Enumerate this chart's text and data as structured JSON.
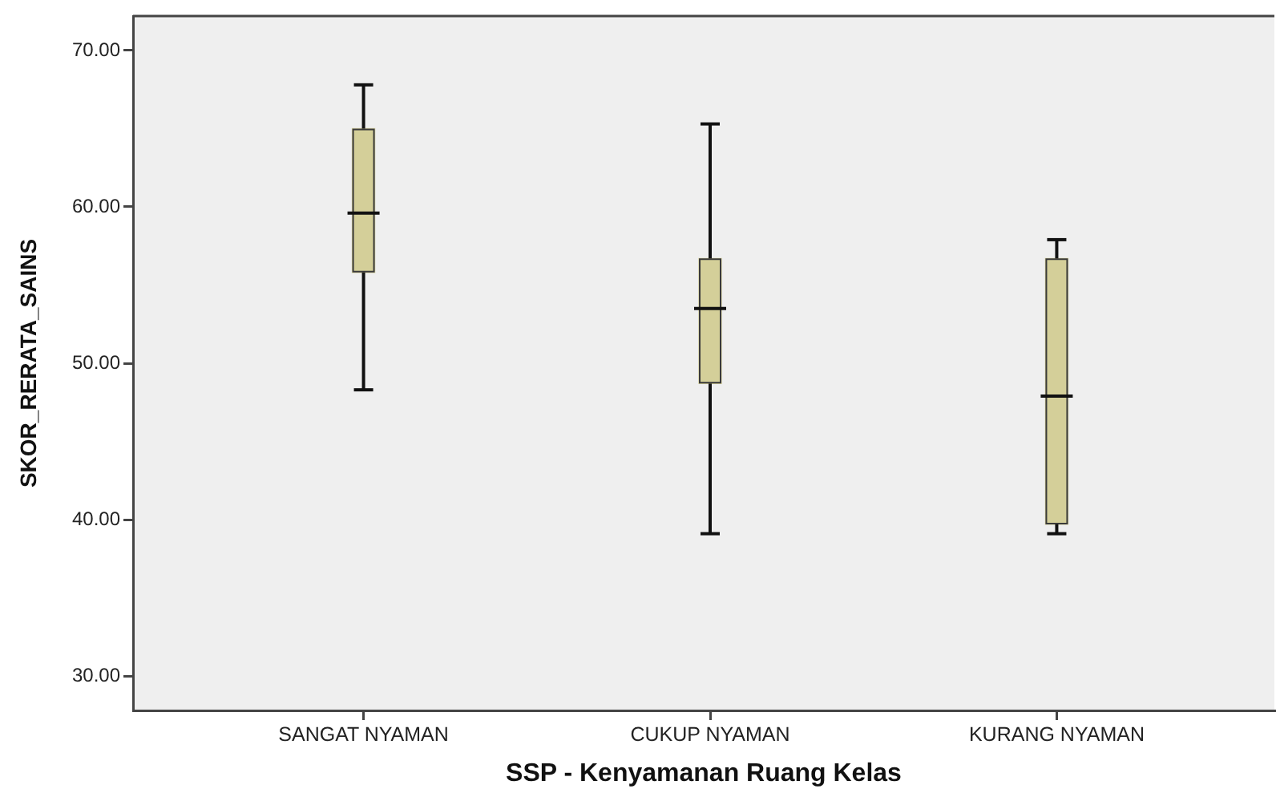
{
  "chart_data": {
    "type": "box",
    "xlabel": "SSP - Kenyamanan Ruang Kelas",
    "ylabel": "SKOR_RERATA_SAINS",
    "categories": [
      "SANGAT NYAMAN",
      "CUKUP NYAMAN",
      "KURANG NYAMAN"
    ],
    "boxes": [
      {
        "low": 48.3,
        "q1": 55.8,
        "median": 59.6,
        "q3": 65.0,
        "high": 67.8
      },
      {
        "low": 39.1,
        "q1": 48.7,
        "median": 53.5,
        "q3": 56.7,
        "high": 65.3
      },
      {
        "low": 39.1,
        "q1": 39.7,
        "median": 47.9,
        "q3": 56.7,
        "high": 57.9
      }
    ],
    "color": "#d4cf99",
    "ylim": [
      27.8,
      72.2
    ],
    "yticks": [
      {
        "value": 30,
        "label": "30.00"
      },
      {
        "value": 40,
        "label": "40.00"
      },
      {
        "value": 50,
        "label": "50.00"
      },
      {
        "value": 60,
        "label": "60.00"
      },
      {
        "value": 70,
        "label": "70.00"
      }
    ],
    "grid": false,
    "legend": false
  }
}
